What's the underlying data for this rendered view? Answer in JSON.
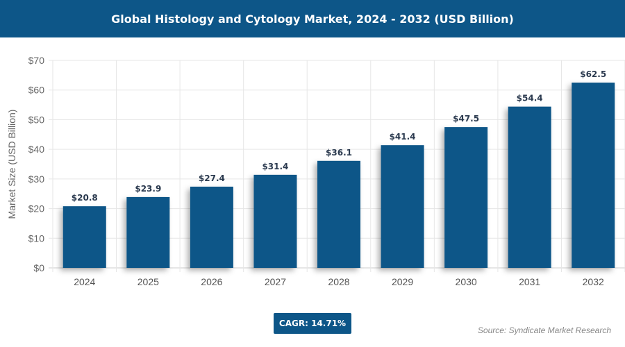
{
  "title": "Global Histology and Cytology Market, 2024 - 2032 (USD Billion)",
  "cagr": "CAGR: 14.71%",
  "source": "Source: Syndicate Market Research",
  "colors": {
    "bar": "#0d5688",
    "header": "#0d5688"
  },
  "chart_data": {
    "type": "bar",
    "title": "Global Histology and Cytology Market, 2024 - 2032 (USD Billion)",
    "xlabel": "",
    "ylabel": "Market Size (USD Billion)",
    "categories": [
      "2024",
      "2025",
      "2026",
      "2027",
      "2028",
      "2029",
      "2030",
      "2031",
      "2032"
    ],
    "values": [
      20.8,
      23.9,
      27.4,
      31.4,
      36.1,
      41.4,
      47.5,
      54.4,
      62.5
    ],
    "data_labels": [
      "$20.8",
      "$23.9",
      "$27.4",
      "$31.4",
      "$36.1",
      "$41.4",
      "$47.5",
      "$54.4",
      "$62.5"
    ],
    "ylim": [
      0,
      70
    ],
    "yticks": [
      0,
      10,
      20,
      30,
      40,
      50,
      60,
      70
    ],
    "ytick_labels": [
      "$0",
      "$10",
      "$20",
      "$30",
      "$40",
      "$50",
      "$60",
      "$70"
    ],
    "grid": true,
    "legend": "none"
  }
}
